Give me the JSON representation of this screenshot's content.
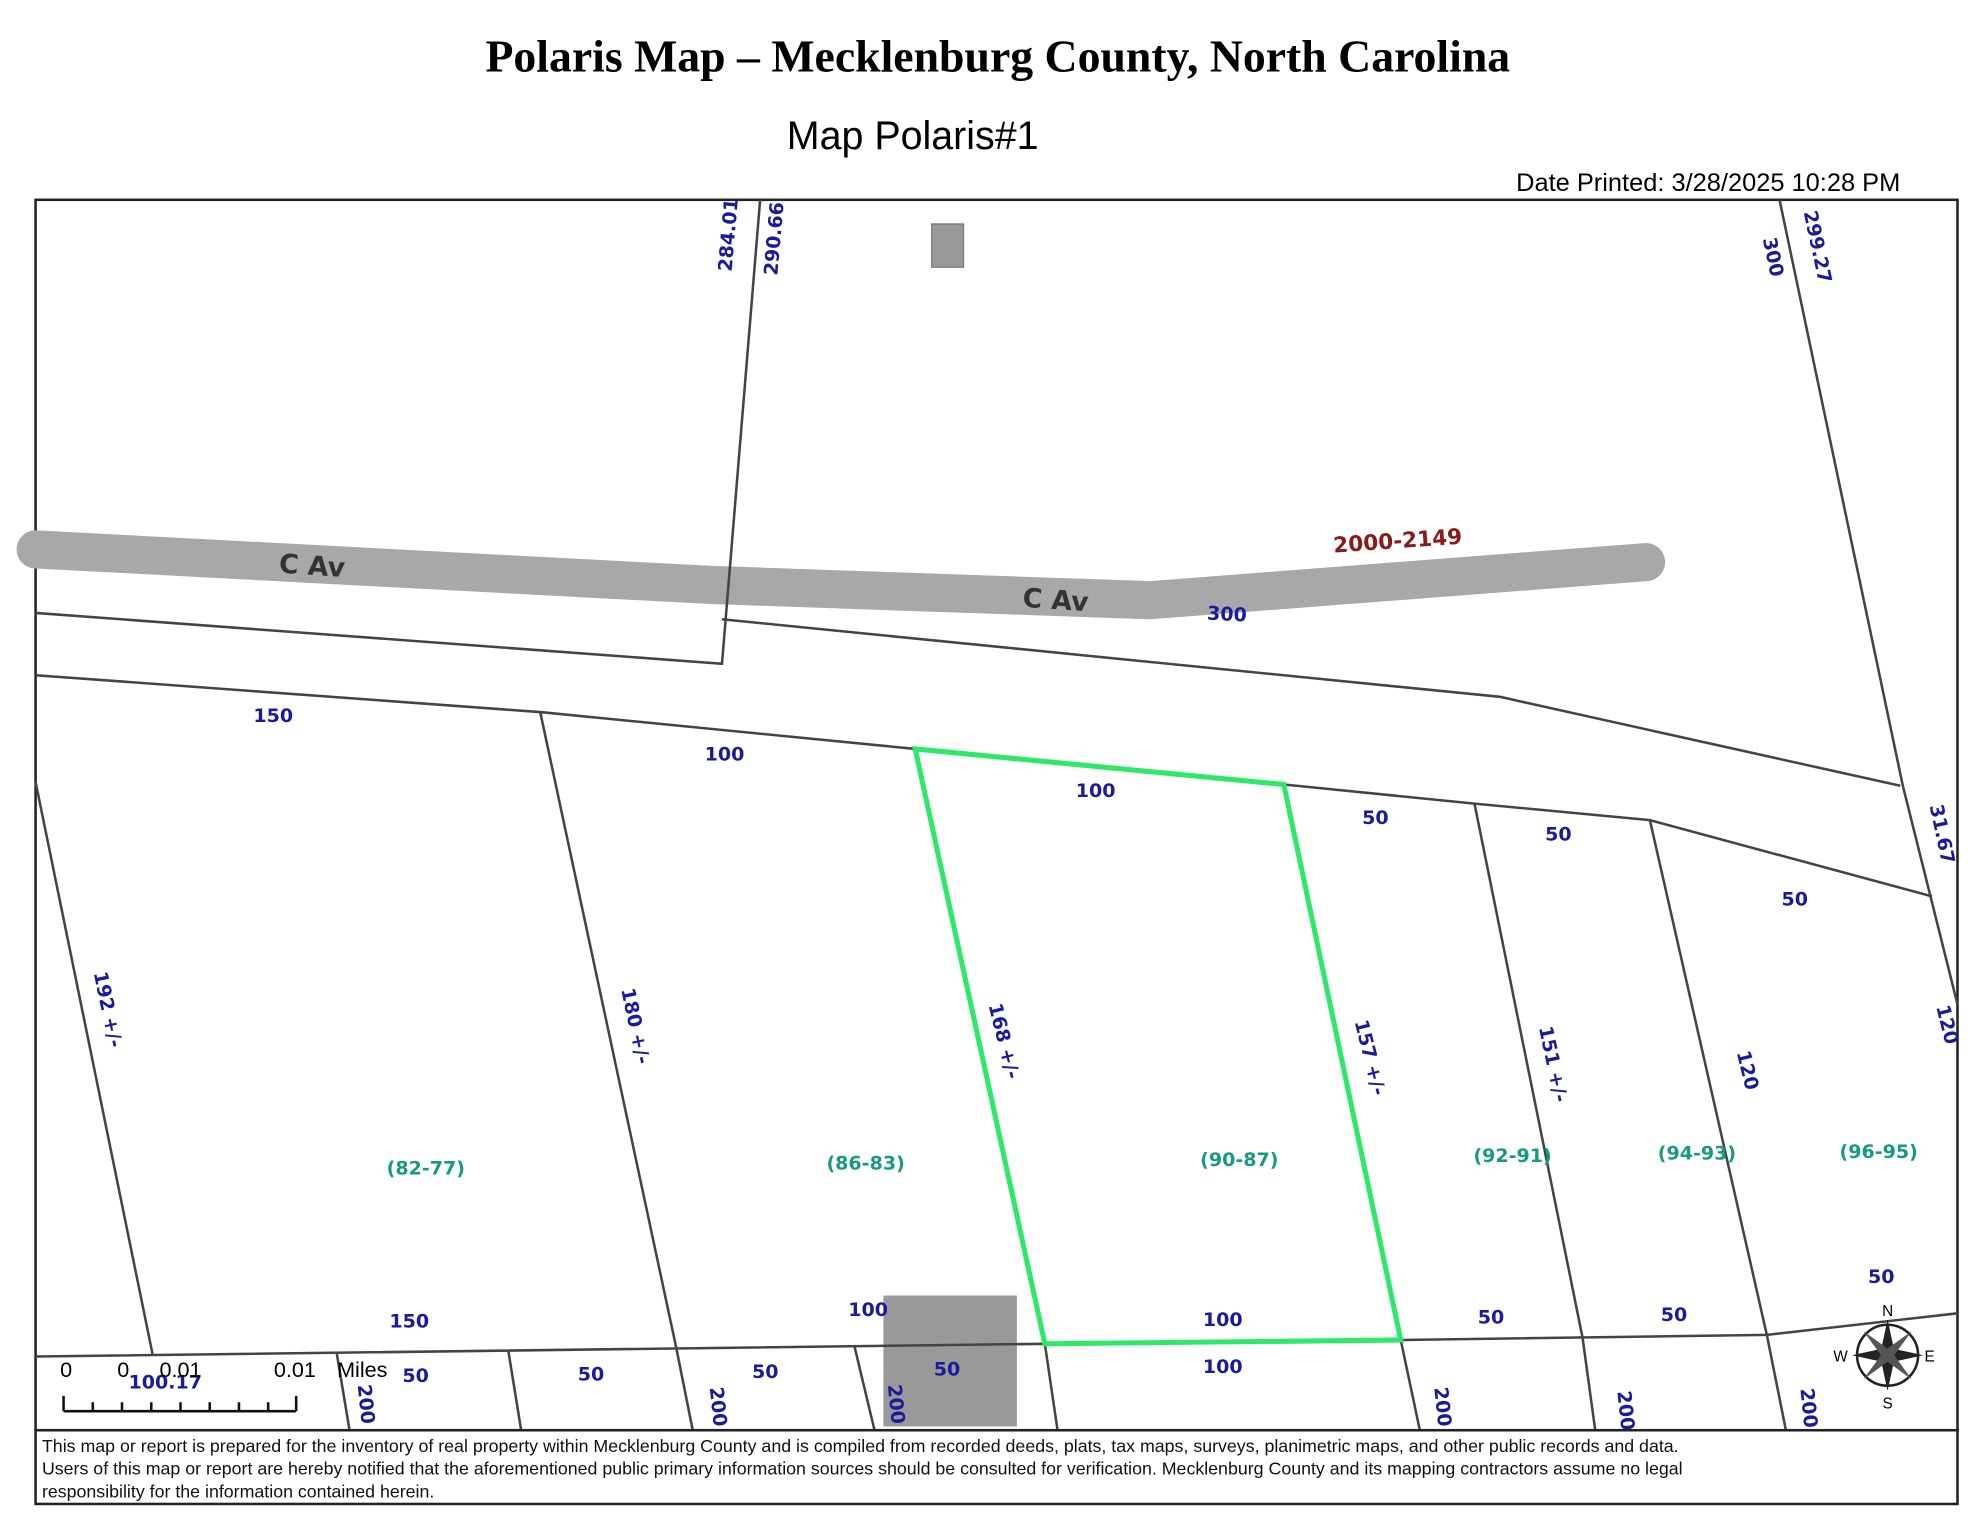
{
  "header": {
    "title": "Polaris Map – Mecklenburg County, North Carolina",
    "subtitle": "Map Polaris#1",
    "date_printed": "Date Printed: 3/28/2025 10:28 PM"
  },
  "map": {
    "streets": [
      "C Av",
      "C Av"
    ],
    "address_range": "2000-2149",
    "labels": [
      "300",
      "284.01",
      "290.66",
      "300",
      "299.27",
      "150",
      "100",
      "100",
      "50",
      "50",
      "50",
      "31.67",
      "192 +/-",
      "180 +/-",
      "168 +/-",
      "157 +/-",
      "151 +/-",
      "120",
      "120",
      "150",
      "100",
      "100",
      "50",
      "50",
      "50",
      "50",
      "50",
      "50",
      "50",
      "100",
      "200",
      "200",
      "200",
      "200",
      "200",
      "200",
      "100.17"
    ],
    "lots": [
      "(82-77)",
      "(86-83)",
      "(90-87)",
      "(92-91)",
      "(94-93)",
      "(96-95)"
    ]
  },
  "scale_bar": {
    "labels": [
      "0",
      "0",
      "0.01",
      "0.01"
    ],
    "unit": "Miles"
  },
  "compass": {
    "north": "N",
    "west": "W",
    "east": "E",
    "south": "S"
  },
  "disclaimer": [
    "This map or report is prepared for the inventory of real property within Mecklenburg County and is compiled from recorded deeds, plats, tax maps, surveys, planimetric maps, and other public records and data.",
    "Users of this map or report are hereby notified that the aforementioned public primary information sources should be consulted for verification. Mecklenburg County and its mapping contractors assume no legal",
    "responsibility for the information contained herein."
  ]
}
